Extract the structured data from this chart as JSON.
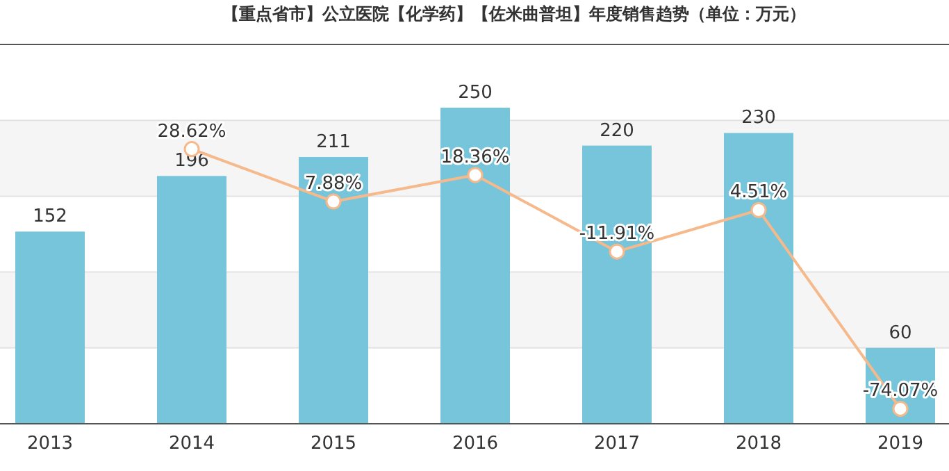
{
  "chart_data": {
    "type": "bar",
    "title": "【重点省市】公立医院【化学药】【佐米曲普坦】年度销售趋势（单位：万元）",
    "categories": [
      "2013",
      "2014",
      "2015",
      "2016",
      "2017",
      "2018",
      "2019"
    ],
    "series": [
      {
        "color": "#76c5da",
        "values": [
          152,
          196,
          211,
          250,
          220,
          230,
          60
        ],
        "value_labels": [
          "152",
          "196",
          "211",
          "250",
          "220",
          "230",
          "60"
        ]
      },
      {
        "type": "line",
        "axis": "y2",
        "color": "#f5b98c",
        "marker": "circle",
        "values": [
          null,
          28.62,
          7.88,
          18.36,
          -11.91,
          4.51,
          -74.07
        ],
        "value_labels": [
          null,
          "28.62%",
          "7.88%",
          "18.36%",
          "-11.91%",
          "4.51%",
          "-74.07%"
        ]
      }
    ],
    "ylim": [
      0,
      300
    ],
    "yticks": [
      {
        "value": 0,
        "label": null
      },
      {
        "value": 60,
        "label": null
      },
      {
        "value": 120,
        "label": null
      },
      {
        "value": 180,
        "label": null
      },
      {
        "value": 240,
        "label": null
      },
      {
        "value": 300,
        "label": null
      }
    ],
    "y2lim": [
      -80,
      70
    ],
    "grid": "y"
  }
}
